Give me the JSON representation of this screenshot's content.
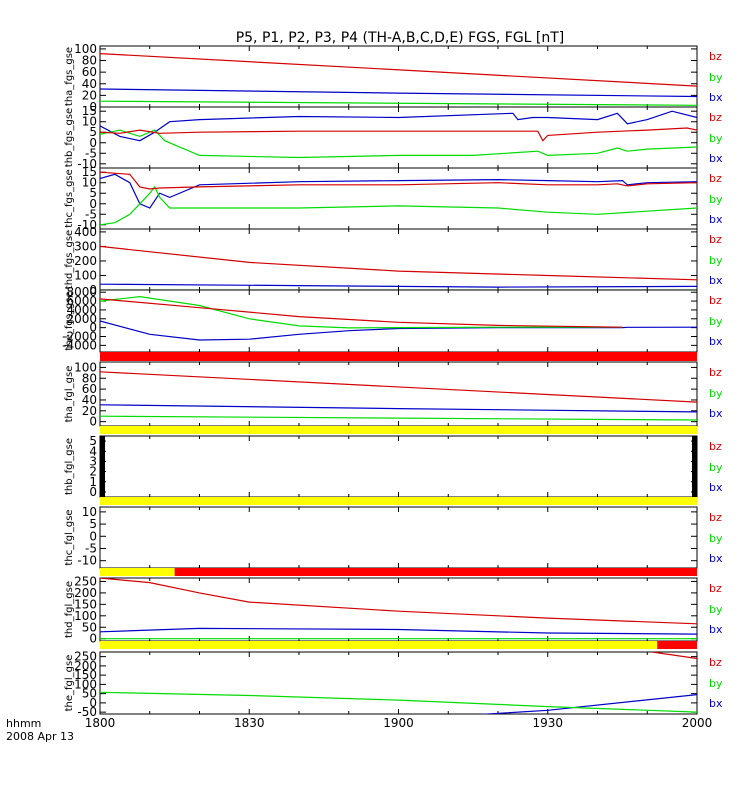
{
  "title": "P5, P1, P2, P3, P4 (TH-A,B,C,D,E) FGS, FGL [nT]",
  "footer": {
    "line1": "hhmm",
    "line2": "2008 Apr 13"
  },
  "colors": {
    "bz": "#d40000",
    "by": "#00dd00",
    "bx": "#0000c8",
    "bar_red": "#ff0000",
    "bar_yellow": "#ffff00",
    "frame": "#000000"
  },
  "chart_data": {
    "type": "line",
    "x_axis": {
      "ticks": [
        "1800",
        "1830",
        "1900",
        "1930",
        "2000"
      ],
      "range_minutes": [
        0,
        120
      ]
    },
    "legend": [
      "bz",
      "by",
      "bx"
    ],
    "panels": [
      {
        "ylabel": "tha_fgs_gse",
        "ylim": [
          0,
          105
        ],
        "yticks": [
          "100",
          "80",
          "60",
          "40",
          "20",
          "0"
        ],
        "series": {
          "bz": {
            "x": [
              0,
              120
            ],
            "y": [
              92,
              36
            ]
          },
          "by": {
            "x": [
              0,
              120
            ],
            "y": [
              10,
              3
            ]
          },
          "bx": {
            "x": [
              0,
              60,
              120
            ],
            "y": [
              31,
              24,
              18
            ]
          }
        }
      },
      {
        "ylabel": "thb_fgs_gse",
        "ylim": [
          -12,
          17
        ],
        "yticks": [
          "15",
          "10",
          "5",
          "0",
          "-5",
          "-10"
        ],
        "series": {
          "bz": {
            "x": [
              0,
              4,
              8,
              12,
              20,
              40,
              60,
              88,
              89,
              90,
              100,
              110,
              118,
              120
            ],
            "y": [
              5,
              4.5,
              6,
              4.5,
              5,
              5.5,
              5.5,
              5.5,
              1,
              3.5,
              5,
              6,
              7,
              6
            ]
          },
          "by": {
            "x": [
              0,
              4,
              8,
              11,
              13,
              20,
              40,
              60,
              75,
              88,
              90,
              100,
              104,
              106,
              110,
              120
            ],
            "y": [
              4,
              6,
              3,
              6,
              1,
              -6,
              -7,
              -6,
              -6,
              -4,
              -6,
              -5,
              -2.5,
              -4,
              -3,
              -2
            ]
          },
          "bx": {
            "x": [
              0,
              4,
              8,
              11,
              14,
              20,
              40,
              60,
              83,
              84,
              87,
              90,
              100,
              104,
              106,
              110,
              115,
              120
            ],
            "y": [
              8,
              3,
              1,
              5,
              10,
              11,
              12.5,
              12,
              14,
              11,
              12,
              12,
              11,
              14,
              9,
              11,
              15,
              12
            ]
          }
        }
      },
      {
        "ylabel": "thc_fgs_gse",
        "ylim": [
          -12,
          17
        ],
        "yticks": [
          "15",
          "10",
          "5",
          "0",
          "-5",
          "-10"
        ],
        "series": {
          "bz": {
            "x": [
              0,
              6,
              8,
              10,
              12,
              20,
              40,
              60,
              80,
              90,
              100,
              104,
              106,
              110,
              120
            ],
            "y": [
              15,
              14,
              8,
              7,
              7.5,
              8,
              9,
              9,
              10,
              9,
              9,
              9.5,
              8.5,
              9.5,
              10
            ]
          },
          "by": {
            "x": [
              0,
              3,
              6,
              8,
              10,
              11,
              12,
              14,
              18,
              40,
              60,
              80,
              90,
              100,
              120
            ],
            "y": [
              -10,
              -9,
              -5,
              0,
              5,
              8,
              3,
              -2,
              -2,
              -2,
              -1,
              -2,
              -4,
              -5,
              -2
            ]
          },
          "bx": {
            "x": [
              0,
              3,
              6,
              8,
              10,
              12,
              14,
              20,
              40,
              60,
              80,
              90,
              100,
              105,
              106,
              110,
              120
            ],
            "y": [
              12,
              14,
              10,
              0,
              -2,
              5,
              3,
              9,
              10.5,
              11,
              11.5,
              11,
              10.5,
              11,
              9,
              10,
              10.5
            ]
          }
        }
      },
      {
        "ylabel": "thd_fgs_gse",
        "ylim": [
          0,
          420
        ],
        "yticks": [
          "400",
          "300",
          "200",
          "100",
          "0"
        ],
        "series": {
          "bz": {
            "x": [
              0,
              30,
              60,
              90,
              120
            ],
            "y": [
              300,
              190,
              130,
              100,
              70
            ]
          },
          "by": {
            "x": [
              0,
              120
            ],
            "y": [
              0,
              0
            ]
          },
          "bx": {
            "x": [
              0,
              40,
              80,
              120
            ],
            "y": [
              40,
              30,
              20,
              25
            ]
          }
        }
      },
      {
        "ylabel": "the_fgs_gse",
        "ylim": [
          -5500,
          8500
        ],
        "yticks": [
          "8000",
          "6000",
          "4000",
          "2000",
          "0",
          "-2000",
          "-4000"
        ],
        "series": {
          "bz": {
            "x": [
              0,
              20,
              40,
              60,
              80,
              105
            ],
            "y": [
              6500,
              4500,
              2500,
              1200,
              500,
              100
            ]
          },
          "by": {
            "x": [
              0,
              8,
              20,
              30,
              40,
              50,
              60,
              80,
              105
            ],
            "y": [
              6000,
              7000,
              5000,
              2000,
              400,
              -50,
              0,
              100,
              100
            ]
          },
          "bx": {
            "x": [
              0,
              10,
              20,
              30,
              40,
              50,
              60,
              80,
              105,
              106,
              120
            ],
            "y": [
              1500,
              -1500,
              -2800,
              -2600,
              -1500,
              -700,
              -200,
              0,
              0,
              80,
              100
            ]
          }
        }
      },
      {
        "ylabel": "tha_fgl_gse",
        "ylim": [
          -8,
          110
        ],
        "yticks": [
          "100",
          "80",
          "60",
          "40",
          "20",
          "0"
        ],
        "series": {
          "bz": {
            "x": [
              0,
              120
            ],
            "y": [
              92,
              36
            ]
          },
          "by": {
            "x": [
              0,
              120
            ],
            "y": [
              10,
              3
            ]
          },
          "bx": {
            "x": [
              0,
              60,
              120
            ],
            "y": [
              31,
              24,
              18
            ]
          }
        }
      },
      {
        "ylabel": "thb_fgl_gse",
        "ylim": [
          -0.5,
          5.5
        ],
        "yticks": [
          "5",
          "4",
          "3",
          "2",
          "1",
          "0"
        ],
        "series": {}
      },
      {
        "ylabel": "thc_fgl_gse",
        "ylim": [
          -13,
          12
        ],
        "yticks": [
          "10",
          "5",
          "0",
          "-5",
          "-10"
        ],
        "series": {}
      },
      {
        "ylabel": "thd_fgl_gse",
        "ylim": [
          -10,
          265
        ],
        "yticks": [
          "250",
          "200",
          "150",
          "100",
          "50",
          "0"
        ],
        "series": {
          "bz": {
            "x": [
              0,
              10,
              20,
              30,
              60,
              90,
              120
            ],
            "y": [
              265,
              245,
              200,
              160,
              120,
              90,
              65
            ]
          },
          "by": {
            "x": [
              0,
              120
            ],
            "y": [
              0,
              0
            ]
          },
          "bx": {
            "x": [
              0,
              20,
              60,
              90,
              120
            ],
            "y": [
              30,
              45,
              40,
              25,
              20
            ]
          }
        }
      },
      {
        "ylabel": "the_fgl_gse",
        "ylim": [
          -60,
          275
        ],
        "yticks": [
          "250",
          "200",
          "150",
          "100",
          "50",
          "0",
          "-50"
        ],
        "series": {
          "bz": {
            "x": [
              111,
              120
            ],
            "y": [
              275,
              240
            ]
          },
          "by": {
            "x": [
              0,
              30,
              60,
              90,
              120
            ],
            "y": [
              57,
              40,
              15,
              -20,
              -50
            ]
          },
          "bx": {
            "x": [
              75,
              90,
              120
            ],
            "y": [
              -65,
              -40,
              45
            ]
          }
        }
      }
    ],
    "status_bars": [
      {
        "after_panel": 4,
        "segments": [
          {
            "from": 0,
            "to": 120,
            "color": "red"
          }
        ]
      },
      {
        "after_panel": 5,
        "segments": [
          {
            "from": 0,
            "to": 120,
            "color": "yellow"
          }
        ]
      },
      {
        "after_panel": 6,
        "segments": [
          {
            "from": 0,
            "to": 120,
            "color": "yellow"
          }
        ]
      },
      {
        "after_panel": 7,
        "segments": [
          {
            "from": 0,
            "to": 15,
            "color": "yellow"
          },
          {
            "from": 15,
            "to": 120,
            "color": "red"
          }
        ]
      },
      {
        "after_panel": 8,
        "segments": [
          {
            "from": 0,
            "to": 112,
            "color": "yellow"
          },
          {
            "from": 112,
            "to": 120,
            "color": "red"
          }
        ]
      }
    ]
  }
}
